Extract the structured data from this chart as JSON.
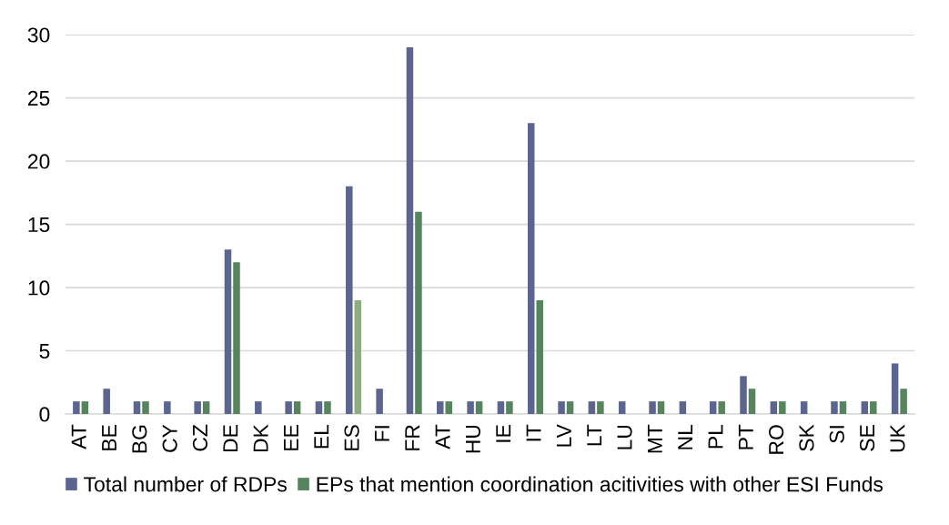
{
  "chart_data": {
    "type": "bar",
    "categories": [
      "AT",
      "BE",
      "BG",
      "CY",
      "CZ",
      "DE",
      "DK",
      "EE",
      "EL",
      "ES",
      "FI",
      "FR",
      "AT",
      "HU",
      "IE",
      "IT",
      "LV",
      "LT",
      "LU",
      "MT",
      "NL",
      "PL",
      "PT",
      "RO",
      "SK",
      "SI",
      "SE",
      "UK"
    ],
    "series": [
      {
        "name": "Total number of RDPs",
        "color": "#5b6590",
        "values": [
          1,
          2,
          1,
          1,
          1,
          13,
          1,
          1,
          1,
          18,
          2,
          29,
          1,
          1,
          1,
          23,
          1,
          1,
          1,
          1,
          1,
          1,
          3,
          1,
          1,
          1,
          1,
          4
        ]
      },
      {
        "name": "EPs that mention coordination acitivities with other ESI Funds",
        "color": "#56845c",
        "colors": [
          "#56845c",
          "#56845c",
          "#56845c",
          "#56845c",
          "#56845c",
          "#56845c",
          "#56845c",
          "#56845c",
          "#56845c",
          "#8cad7f",
          "#56845c",
          "#56845c",
          "#56845c",
          "#56845c",
          "#56845c",
          "#56845c",
          "#56845c",
          "#56845c",
          "#56845c",
          "#56845c",
          "#56845c",
          "#56845c",
          "#56845c",
          "#56845c",
          "#56845c",
          "#56845c",
          "#56845c",
          "#56845c"
        ],
        "values": [
          1,
          0,
          1,
          0,
          1,
          12,
          0,
          1,
          1,
          9,
          0,
          16,
          1,
          1,
          1,
          9,
          1,
          1,
          0,
          1,
          0,
          1,
          2,
          1,
          0,
          1,
          1,
          2
        ]
      }
    ],
    "ylim": [
      0,
      30
    ],
    "yticks": [
      0,
      5,
      10,
      15,
      20,
      25,
      30
    ],
    "grid": "y",
    "legend": "bottom"
  }
}
